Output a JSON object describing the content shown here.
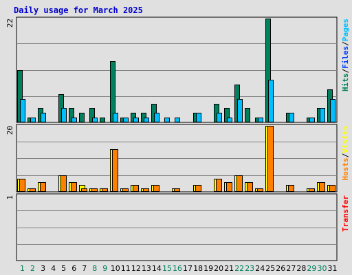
{
  "chart_data": [
    {
      "type": "bar",
      "title": "Daily usage for March 2025",
      "panel": "top",
      "ymax_label": "22",
      "ylim": [
        0,
        22
      ],
      "side_label": [
        "Hits",
        "Files",
        "Pages"
      ],
      "side_sep": "/",
      "categories": [
        "1",
        "2",
        "3",
        "4",
        "5",
        "6",
        "7",
        "8",
        "9",
        "10",
        "11",
        "12",
        "13",
        "14",
        "15",
        "16",
        "17",
        "18",
        "19",
        "20",
        "21",
        "22",
        "23",
        "24",
        "25",
        "26",
        "27",
        "28",
        "29",
        "30",
        "31"
      ],
      "weekend_days": [
        "1",
        "2",
        "8",
        "9",
        "15",
        "16",
        "22",
        "23",
        "29",
        "30"
      ],
      "series": [
        {
          "name": "Hits",
          "color": "#00805c",
          "values": [
            11,
            1,
            3,
            0,
            6,
            3,
            2,
            3,
            1,
            13,
            1,
            2,
            2,
            4,
            0,
            0,
            0,
            2,
            0,
            4,
            3,
            8,
            3,
            1,
            22,
            0,
            2,
            0,
            1,
            3,
            7
          ]
        },
        {
          "name": "Files",
          "color": "#00bfff",
          "values": [
            5,
            1,
            2,
            0,
            3,
            1,
            0,
            1,
            0,
            2,
            1,
            1,
            1,
            2,
            1,
            1,
            0,
            2,
            0,
            2,
            1,
            5,
            0,
            1,
            9,
            0,
            2,
            0,
            1,
            3,
            5
          ]
        },
        {
          "name": "Pages",
          "color": "#00e0ff",
          "values": [
            0,
            0,
            0,
            0,
            0,
            0,
            0,
            0,
            0,
            0,
            0,
            0,
            0,
            0,
            0,
            0,
            0,
            0,
            0,
            0,
            0,
            0,
            0,
            0,
            0,
            0,
            0,
            0,
            0,
            0,
            0
          ]
        }
      ],
      "grid": true
    },
    {
      "type": "bar",
      "panel": "middle",
      "ymax_label": "20",
      "ylim": [
        0,
        20
      ],
      "side_label": [
        "Hosts",
        "Visits"
      ],
      "side_sep": "/",
      "categories": [
        "1",
        "2",
        "3",
        "4",
        "5",
        "6",
        "7",
        "8",
        "9",
        "10",
        "11",
        "12",
        "13",
        "14",
        "15",
        "16",
        "17",
        "18",
        "19",
        "20",
        "21",
        "22",
        "23",
        "24",
        "25",
        "26",
        "27",
        "28",
        "29",
        "30",
        "31"
      ],
      "series": [
        {
          "name": "Visits",
          "color": "#ffff00",
          "values": [
            4,
            1,
            3,
            0,
            5,
            3,
            2,
            1,
            1,
            13,
            1,
            2,
            1,
            2,
            0,
            1,
            0,
            2,
            0,
            4,
            3,
            5,
            3,
            1,
            20,
            0,
            2,
            0,
            1,
            3,
            2
          ]
        },
        {
          "name": "Hosts",
          "color": "#ff8000",
          "values": [
            4,
            1,
            3,
            0,
            5,
            3,
            1,
            1,
            1,
            13,
            1,
            2,
            1,
            2,
            0,
            1,
            0,
            2,
            0,
            4,
            3,
            5,
            3,
            1,
            20,
            0,
            2,
            0,
            1,
            3,
            2
          ]
        }
      ],
      "grid": true
    },
    {
      "type": "bar",
      "panel": "bottom",
      "ymax_label": "1",
      "ylim": [
        0,
        1
      ],
      "side_label": [
        "Transfer"
      ],
      "side_sep": "",
      "series": [
        {
          "name": "Transfer",
          "color": "#ff0000",
          "values": [
            0,
            0,
            0,
            0,
            0,
            0,
            0,
            0,
            0,
            0,
            0,
            0,
            0,
            0,
            0,
            0,
            0,
            0,
            0,
            0,
            0,
            0,
            0,
            0,
            0,
            0,
            0,
            0,
            0,
            0,
            0
          ]
        }
      ],
      "grid": true
    }
  ],
  "colors": {
    "background": "#e0e0e0",
    "panel": "#e0e0e0",
    "grid": "#808080",
    "title": "#0000cc",
    "weekday_tick": "#000000",
    "weekend_tick": "#00805c",
    "side": {
      "Hits": "#00805c",
      "Files": "#0040ff",
      "Pages": "#00c0ff",
      "Hosts": "#ff8000",
      "Visits": "#ffff00",
      "Transfer": "#ff0000",
      "sep": "#000000"
    }
  }
}
